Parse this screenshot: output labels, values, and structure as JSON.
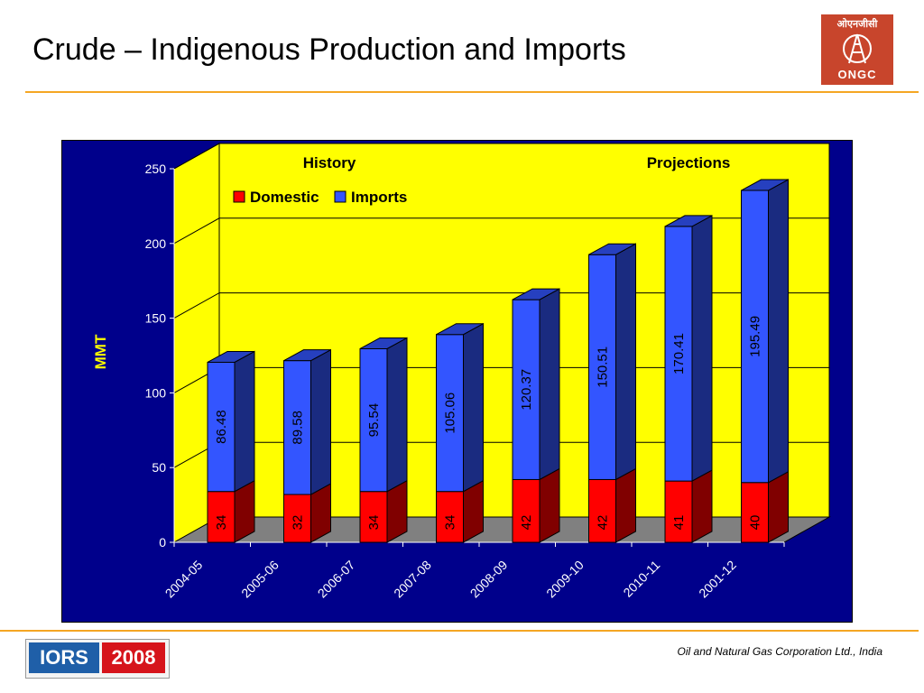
{
  "slide": {
    "title": "Crude – Indigenous Production and Imports",
    "footer": "Oil and Natural Gas Corporation Ltd., India",
    "rule_color": "#f5a623"
  },
  "logos": {
    "ongc": {
      "hindi": "ओएनजीसी",
      "text": "ONGC"
    },
    "iors": {
      "left": "IORS",
      "right": "2008"
    }
  },
  "chart_data": {
    "type": "bar",
    "stacked": true,
    "three_d": true,
    "categories": [
      "2004-05",
      "2005-06",
      "2006-07",
      "2007-08",
      "2008-09",
      "2009-10",
      "2010-11",
      "2001-12"
    ],
    "series": [
      {
        "name": "Domestic",
        "color": "#ff0000",
        "values": [
          34,
          32,
          34,
          34,
          42,
          42,
          41,
          40
        ]
      },
      {
        "name": "Imports",
        "color": "#3355ff",
        "values": [
          86.48,
          89.58,
          95.54,
          105.06,
          120.37,
          150.51,
          170.41,
          195.49
        ]
      }
    ],
    "ylabel": "MMT",
    "xlabel": "",
    "ylim": [
      0,
      250
    ],
    "yticks": [
      0,
      50,
      100,
      150,
      200,
      250
    ],
    "grid": true,
    "legend_position": "top-left",
    "annotations": [
      "History",
      "Projections"
    ],
    "colors": {
      "background": "#00008b",
      "plot_wall": "#ffff00",
      "floor": "#808080"
    }
  }
}
